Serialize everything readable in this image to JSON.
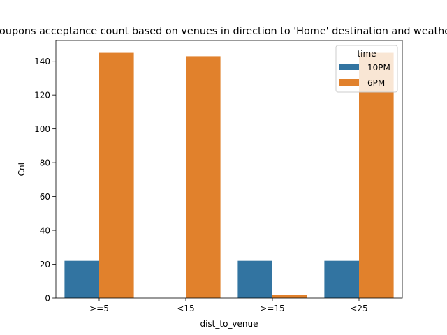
{
  "chart_data": {
    "type": "bar",
    "title": "Coupons acceptance count based on venues in direction to 'Home' destination and weather",
    "xlabel": "dist_to_venue",
    "ylabel": "Cnt",
    "categories": [
      ">=5",
      "<15",
      ">=15",
      "<25"
    ],
    "ylim": [
      0,
      152.25
    ],
    "yticks": [
      0,
      20,
      40,
      60,
      80,
      100,
      120,
      140
    ],
    "legend": {
      "title": "time",
      "position": "top-right"
    },
    "grid": false,
    "series": [
      {
        "name": "10PM",
        "color": "#3274a1",
        "values": [
          22,
          0,
          22,
          22
        ]
      },
      {
        "name": "6PM",
        "color": "#e1812c",
        "values": [
          145,
          143,
          2,
          145
        ]
      }
    ]
  }
}
